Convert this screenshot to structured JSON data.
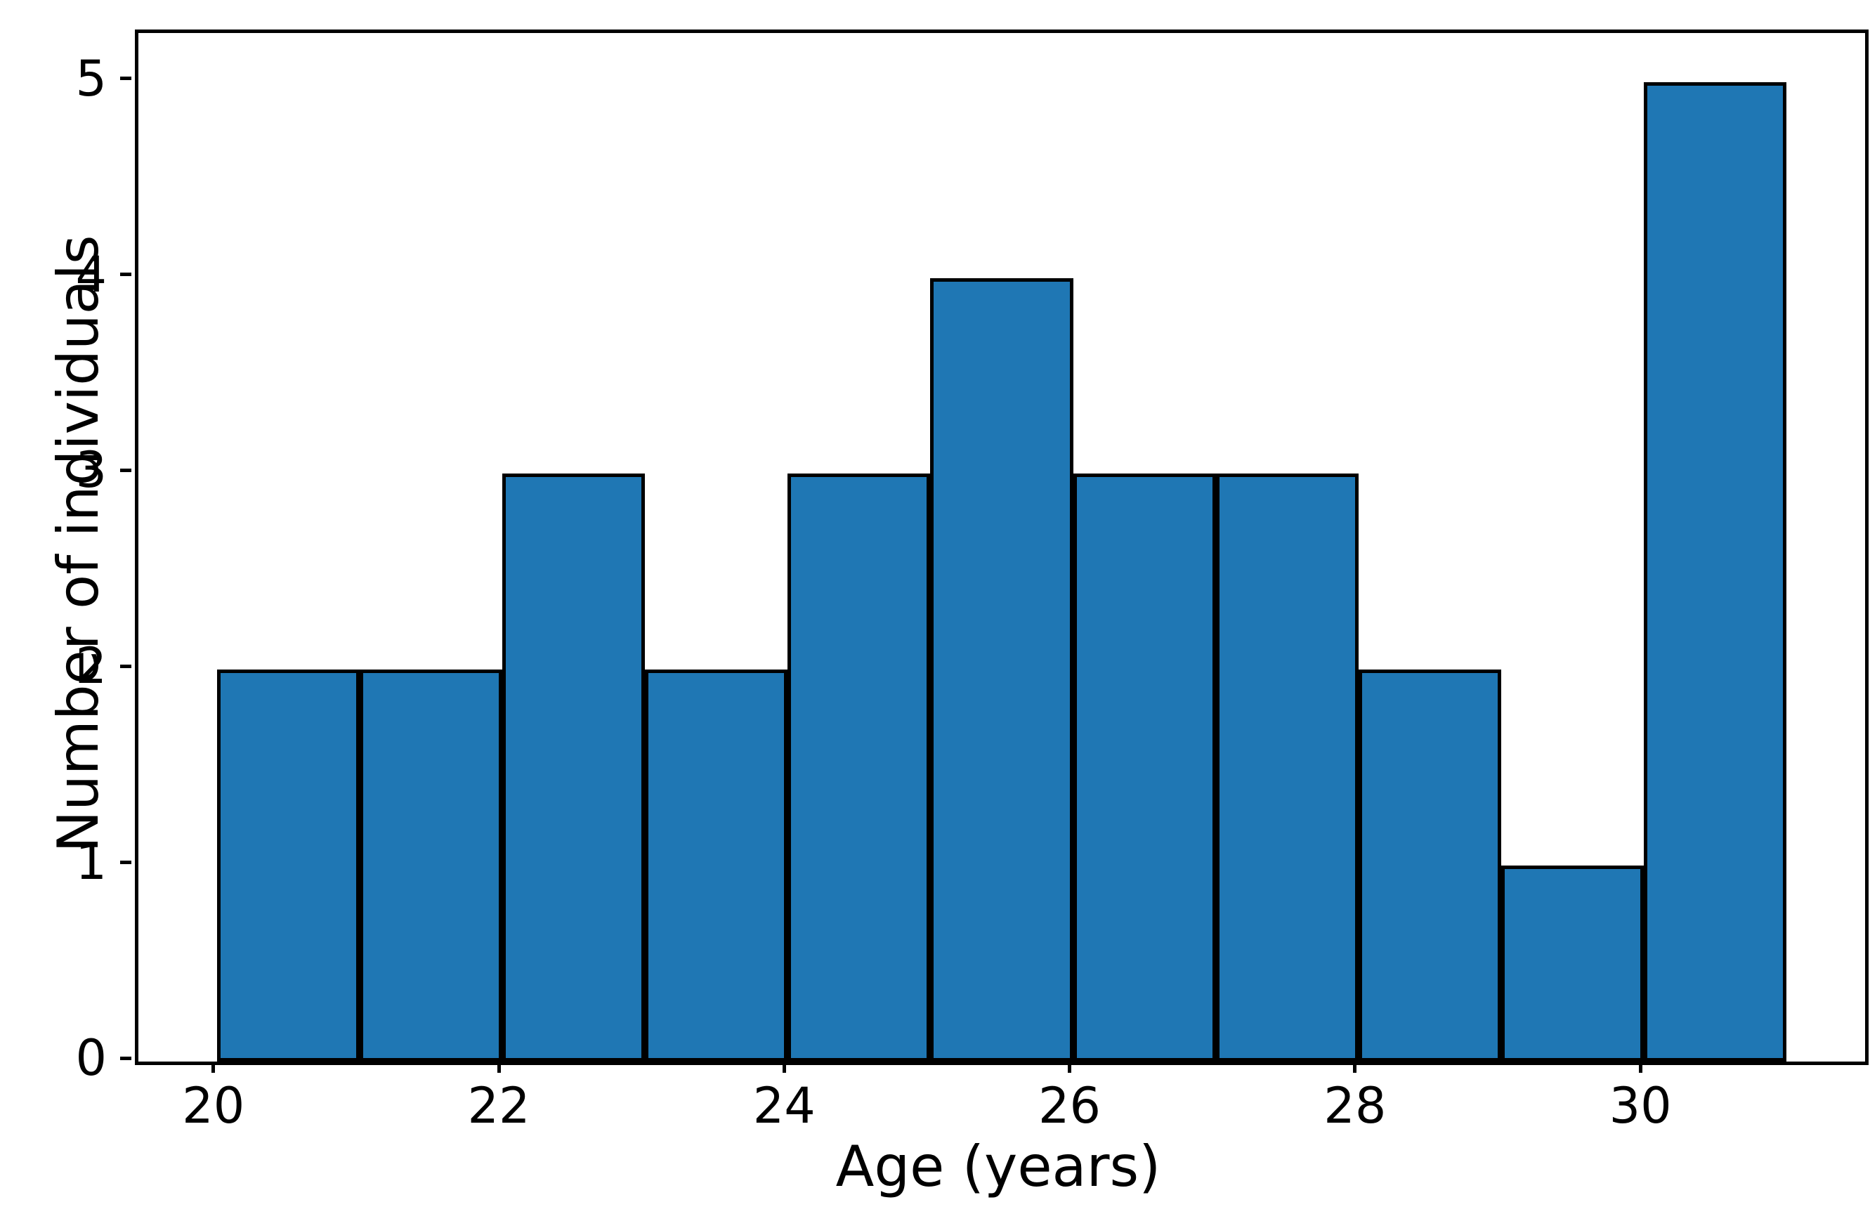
{
  "chart_data": {
    "type": "histogram",
    "title": "",
    "xlabel": "Age (years)",
    "ylabel": "Number of individuals",
    "bin_edges": [
      20,
      21,
      22,
      23,
      24,
      25,
      26,
      27,
      28,
      29,
      30,
      31
    ],
    "counts": [
      2,
      2,
      3,
      2,
      3,
      4,
      3,
      3,
      2,
      1,
      5
    ],
    "total_individuals": 30,
    "x_tick_values": [
      20,
      22,
      24,
      26,
      28,
      30
    ],
    "x_tick_labels": [
      "20",
      "22",
      "24",
      "26",
      "28",
      "30"
    ],
    "y_tick_values": [
      0,
      1,
      2,
      3,
      4,
      5
    ],
    "y_tick_labels": [
      "0",
      "1",
      "2",
      "3",
      "4",
      "5"
    ],
    "xlim": [
      19.45,
      31.55
    ],
    "ylim": [
      0,
      5.25
    ],
    "bar_fill_color": "#1f77b4",
    "bar_edge_color": "#000000",
    "axis_color": "#000000",
    "background_color": "#ffffff",
    "grid": false,
    "legend": false
  }
}
